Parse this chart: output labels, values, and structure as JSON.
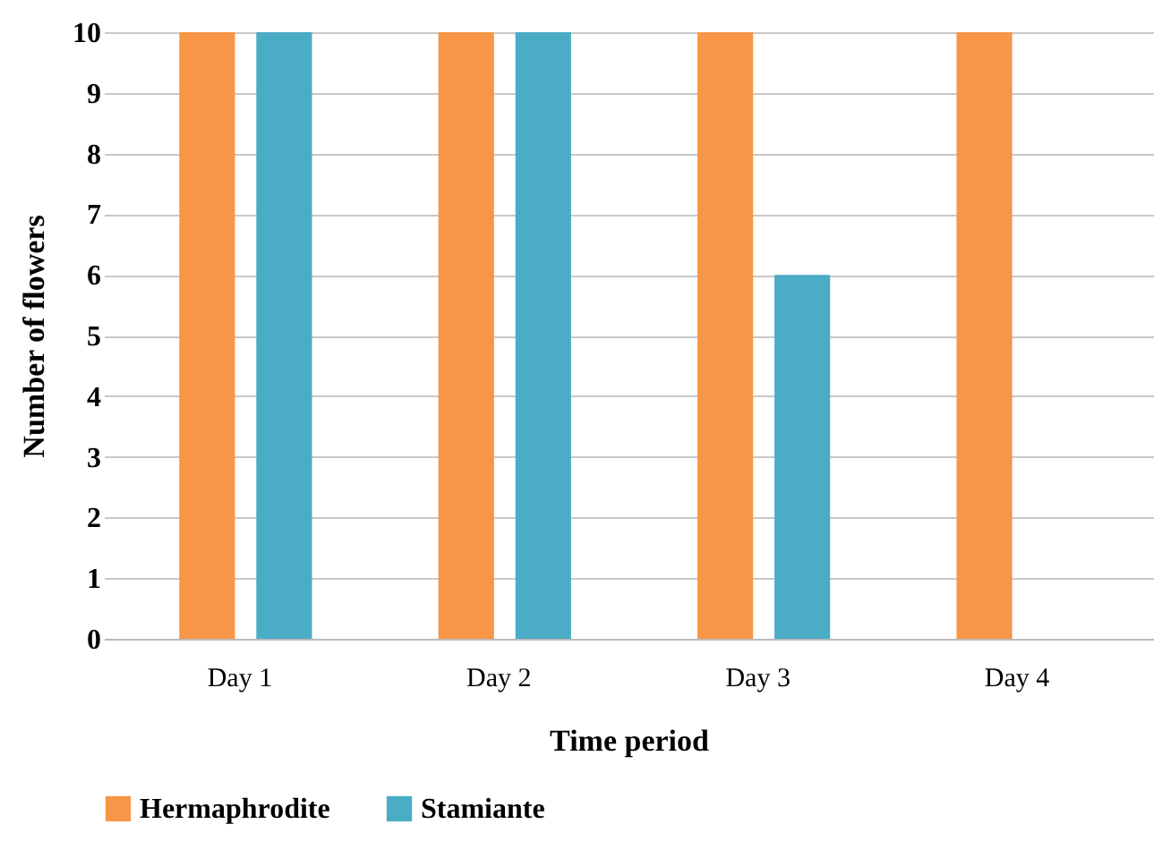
{
  "chart_data": {
    "type": "bar",
    "xlabel": "Time period",
    "ylabel": "Number of flowers",
    "categories": [
      "Day 1",
      "Day 2",
      "Day 3",
      "Day 4"
    ],
    "series": [
      {
        "name": "Hermaphrodite",
        "color": "#f79646",
        "values": [
          10,
          10,
          10,
          10
        ]
      },
      {
        "name": "Stamiante",
        "color": "#4bacc6",
        "values": [
          10,
          10,
          6,
          0
        ]
      }
    ],
    "ylim": [
      0,
      10
    ],
    "yticks": [
      0,
      1,
      2,
      3,
      4,
      5,
      6,
      7,
      8,
      9,
      10
    ],
    "grid": "y",
    "legend": "bottom"
  }
}
